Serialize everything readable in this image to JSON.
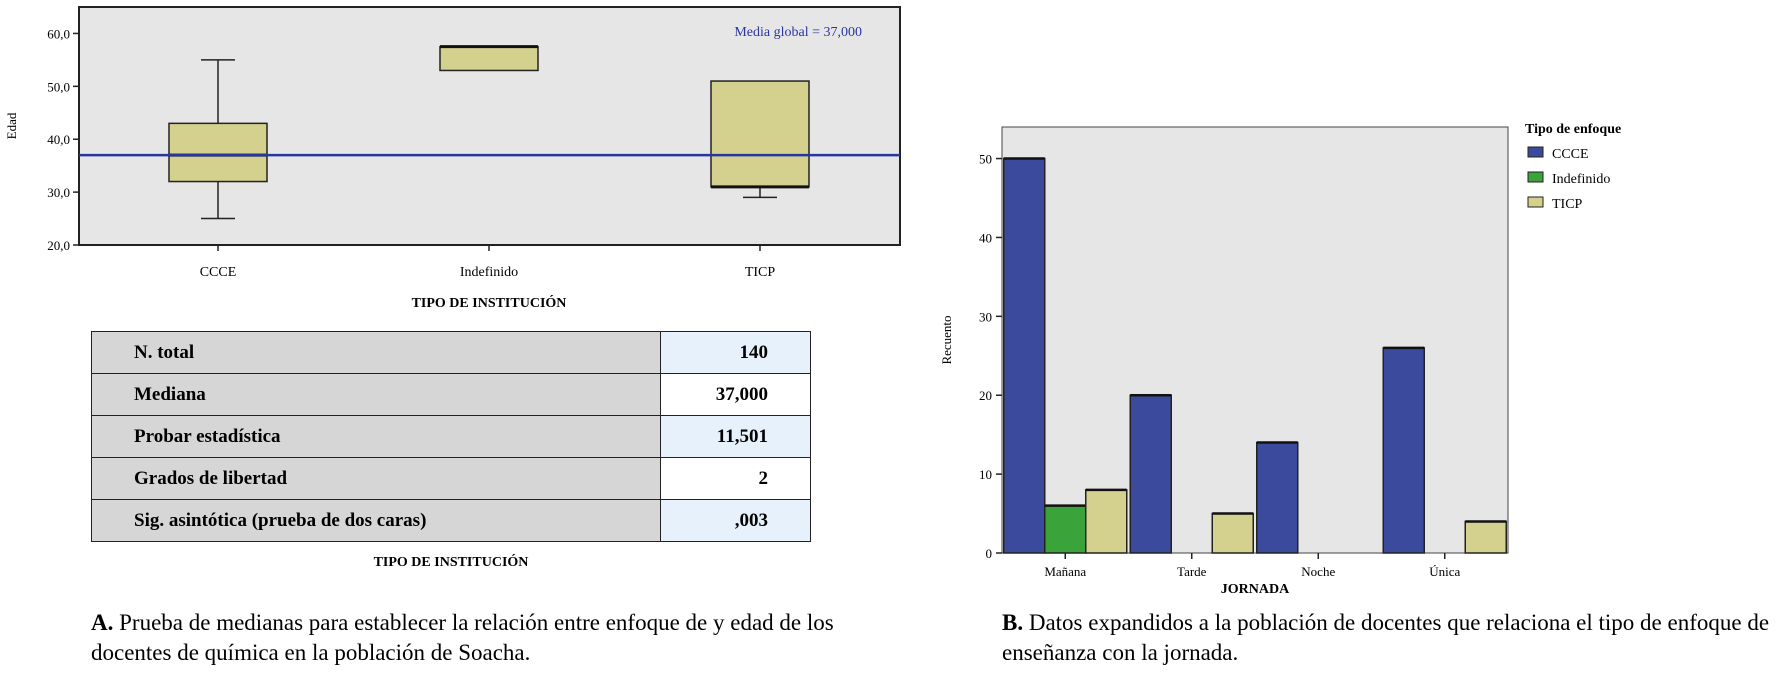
{
  "chart_data": [
    {
      "type": "box",
      "ylabel": "Edad",
      "xlabel": "TIPO DE INSTITUCIÓN",
      "ylim": [
        20,
        65
      ],
      "yticks": [
        "20,0",
        "30,0",
        "40,0",
        "50,0",
        "60,0"
      ],
      "ytick_values": [
        20,
        30,
        40,
        50,
        60
      ],
      "categories": [
        "CCCE",
        "Indefinido",
        "TICP"
      ],
      "boxes": [
        {
          "category": "CCCE",
          "whisker_low": 25,
          "q1": 32,
          "median": 37,
          "q3": 43,
          "whisker_high": 55
        },
        {
          "category": "Indefinido",
          "whisker_low": 53,
          "q1": 53,
          "median": 57.5,
          "q3": 57.5,
          "whisker_high": 57.5
        },
        {
          "category": "TICP",
          "whisker_low": 29,
          "q1": 31,
          "median": 31,
          "q3": 51,
          "whisker_high": 51
        }
      ],
      "reference_line": {
        "value": 37,
        "label": "Media global = 37,000",
        "color": "#2a36a0"
      },
      "colors": {
        "box_fill": "#d4d08e",
        "plot_bg": "#e6e6e6"
      }
    },
    {
      "type": "bar",
      "ylabel": "Recuento",
      "xlabel": "JORNADA",
      "ylim": [
        0,
        54
      ],
      "yticks": [
        0,
        10,
        20,
        30,
        40,
        50
      ],
      "categories": [
        "Mañana",
        "Tarde",
        "Noche",
        "Única"
      ],
      "legend_title": "Tipo de enfoque",
      "legend_position": "right",
      "series": [
        {
          "name": "CCCE",
          "color": "#3c4a9e",
          "values": [
            50,
            20,
            14,
            26
          ]
        },
        {
          "name": "Indefinido",
          "color": "#3aa33a",
          "values": [
            6,
            0,
            0,
            0
          ]
        },
        {
          "name": "TICP",
          "color": "#d4d08e",
          "values": [
            8,
            5,
            0,
            4
          ]
        }
      ],
      "colors": {
        "plot_bg": "#e6e6e6"
      }
    }
  ],
  "table": {
    "rows": [
      {
        "label": "N. total",
        "value": "140"
      },
      {
        "label": "Mediana",
        "value": "37,000"
      },
      {
        "label": "Probar estadística",
        "value": "11,501"
      },
      {
        "label": "Grados de libertad",
        "value": "2"
      },
      {
        "label": "Sig. asintótica (prueba de dos caras)",
        "value": ",003"
      }
    ],
    "caption": "TIPO DE INSTITUCIÓN"
  },
  "captions": {
    "a_bold": "A.",
    "a_text": " Prueba de medianas para establecer la relación entre enfoque de y edad de los docentes de química en la población de Soacha.",
    "b_bold": "B.",
    "b_text": " Datos expandidos a la población de docentes que relaciona el tipo de enfoque de enseñanza con la jornada."
  }
}
